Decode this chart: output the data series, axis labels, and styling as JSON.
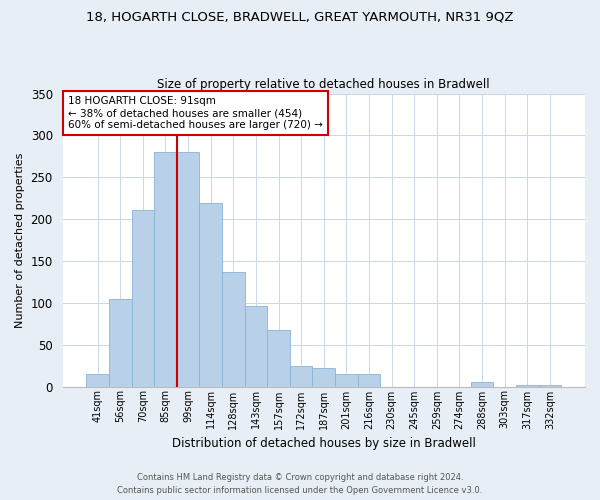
{
  "title_line1": "18, HOGARTH CLOSE, BRADWELL, GREAT YARMOUTH, NR31 9QZ",
  "title_line2": "Size of property relative to detached houses in Bradwell",
  "xlabel": "Distribution of detached houses by size in Bradwell",
  "ylabel": "Number of detached properties",
  "bar_labels": [
    "41sqm",
    "56sqm",
    "70sqm",
    "85sqm",
    "99sqm",
    "114sqm",
    "128sqm",
    "143sqm",
    "157sqm",
    "172sqm",
    "187sqm",
    "201sqm",
    "216sqm",
    "230sqm",
    "245sqm",
    "259sqm",
    "274sqm",
    "288sqm",
    "303sqm",
    "317sqm",
    "332sqm"
  ],
  "bar_values": [
    15,
    104,
    211,
    280,
    280,
    219,
    137,
    96,
    68,
    25,
    22,
    15,
    15,
    0,
    0,
    0,
    0,
    5,
    0,
    2,
    2
  ],
  "bar_color": "#b8d0e8",
  "bar_edgecolor": "#8ab4d4",
  "vline_color": "#cc0000",
  "vline_x_index": 3.5,
  "annotation_title": "18 HOGARTH CLOSE: 91sqm",
  "annotation_line2": "← 38% of detached houses are smaller (454)",
  "annotation_line3": "60% of semi-detached houses are larger (720) →",
  "annotation_box_edgecolor": "#cc0000",
  "ylim": [
    0,
    350
  ],
  "yticks": [
    0,
    50,
    100,
    150,
    200,
    250,
    300,
    350
  ],
  "footnote1": "Contains HM Land Registry data © Crown copyright and database right 2024.",
  "footnote2": "Contains public sector information licensed under the Open Government Licence v3.0.",
  "bg_color": "#e8eef5",
  "plot_bg_color": "#ffffff"
}
